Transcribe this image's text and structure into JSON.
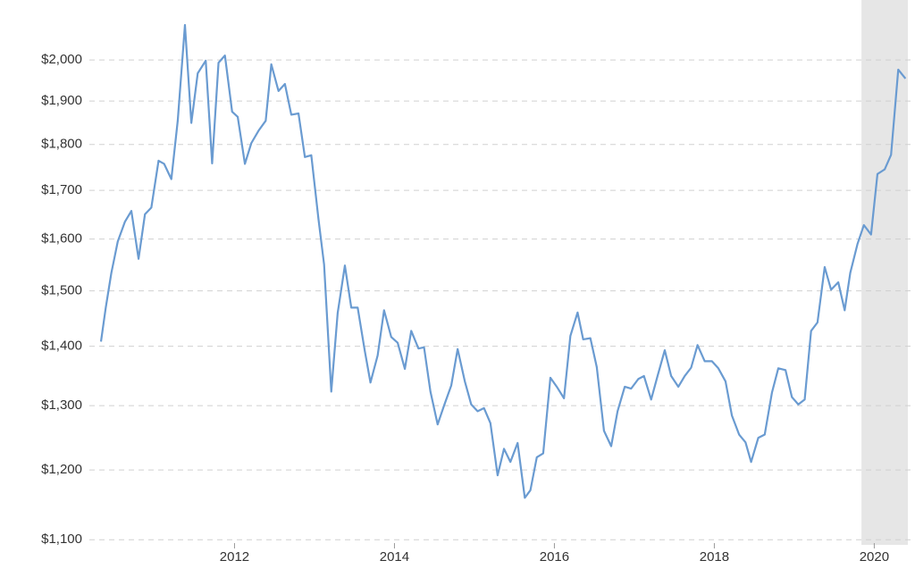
{
  "chart_data": {
    "type": "line",
    "log_y": true,
    "grid": true,
    "color": "#6a9bd1",
    "shade_color": "#e6e6e6",
    "shade": [
      2019.84,
      2020.42
    ],
    "xlim": [
      2010.33,
      2020.42
    ],
    "ylim": [
      1093,
      2155
    ],
    "xticks": [
      2012,
      2014,
      2016,
      2018,
      2020
    ],
    "yticks": [
      {
        "value": 1100,
        "label": "$1,100"
      },
      {
        "value": 1200,
        "label": "$1,200"
      },
      {
        "value": 1300,
        "label": "$1,300"
      },
      {
        "value": 1400,
        "label": "$1,400"
      },
      {
        "value": 1500,
        "label": "$1,500"
      },
      {
        "value": 1600,
        "label": "$1,600"
      },
      {
        "value": 1700,
        "label": "$1,700"
      },
      {
        "value": 1800,
        "label": "$1,800"
      },
      {
        "value": 1900,
        "label": "$1,900"
      },
      {
        "value": 2000,
        "label": "$2,000"
      }
    ],
    "x": [
      2010.33,
      2010.39,
      2010.46,
      2010.54,
      2010.63,
      2010.71,
      2010.8,
      2010.88,
      2010.96,
      2011.05,
      2011.12,
      2011.21,
      2011.29,
      2011.38,
      2011.46,
      2011.54,
      2011.64,
      2011.72,
      2011.8,
      2011.88,
      2011.97,
      2012.04,
      2012.13,
      2012.21,
      2012.3,
      2012.39,
      2012.46,
      2012.55,
      2012.63,
      2012.71,
      2012.8,
      2012.88,
      2012.96,
      2013.05,
      2013.12,
      2013.21,
      2013.29,
      2013.38,
      2013.46,
      2013.54,
      2013.63,
      2013.7,
      2013.79,
      2013.87,
      2013.96,
      2014.04,
      2014.13,
      2014.21,
      2014.3,
      2014.37,
      2014.45,
      2014.54,
      2014.62,
      2014.71,
      2014.79,
      2014.88,
      2014.96,
      2015.04,
      2015.12,
      2015.2,
      2015.29,
      2015.37,
      2015.45,
      2015.54,
      2015.63,
      2015.7,
      2015.78,
      2015.86,
      2015.95,
      2016.03,
      2016.12,
      2016.2,
      2016.29,
      2016.36,
      2016.45,
      2016.53,
      2016.62,
      2016.71,
      2016.79,
      2016.88,
      2016.96,
      2017.05,
      2017.12,
      2017.21,
      2017.29,
      2017.38,
      2017.46,
      2017.55,
      2017.63,
      2017.71,
      2017.79,
      2017.88,
      2017.97,
      2018.05,
      2018.14,
      2018.22,
      2018.31,
      2018.39,
      2018.46,
      2018.55,
      2018.63,
      2018.72,
      2018.8,
      2018.89,
      2018.97,
      2019.05,
      2019.13,
      2019.21,
      2019.29,
      2019.38,
      2019.46,
      2019.55,
      2019.63,
      2019.7,
      2019.79,
      2019.87,
      2019.96,
      2020.04,
      2020.13,
      2020.21,
      2020.3,
      2020.39
    ],
    "values": [
      1408,
      1469,
      1534,
      1595,
      1635,
      1657,
      1561,
      1650,
      1664,
      1764,
      1757,
      1724,
      1854,
      2089,
      1849,
      1967,
      1998,
      1758,
      1993,
      2011,
      1875,
      1863,
      1757,
      1803,
      1831,
      1854,
      1989,
      1924,
      1941,
      1868,
      1871,
      1772,
      1776,
      1640,
      1550,
      1323,
      1459,
      1548,
      1469,
      1469,
      1391,
      1338,
      1384,
      1464,
      1416,
      1406,
      1361,
      1427,
      1396,
      1398,
      1323,
      1270,
      1300,
      1333,
      1395,
      1340,
      1302,
      1291,
      1296,
      1272,
      1192,
      1232,
      1212,
      1241,
      1159,
      1170,
      1219,
      1225,
      1346,
      1331,
      1312,
      1418,
      1460,
      1412,
      1414,
      1364,
      1260,
      1236,
      1291,
      1331,
      1328,
      1344,
      1349,
      1310,
      1349,
      1393,
      1349,
      1331,
      1349,
      1363,
      1402,
      1374,
      1374,
      1362,
      1340,
      1284,
      1254,
      1242,
      1212,
      1249,
      1254,
      1321,
      1362,
      1359,
      1314,
      1302,
      1310,
      1427,
      1442,
      1545,
      1502,
      1516,
      1464,
      1534,
      1590,
      1628,
      1609,
      1735,
      1745,
      1777,
      1976,
      1954
    ]
  }
}
